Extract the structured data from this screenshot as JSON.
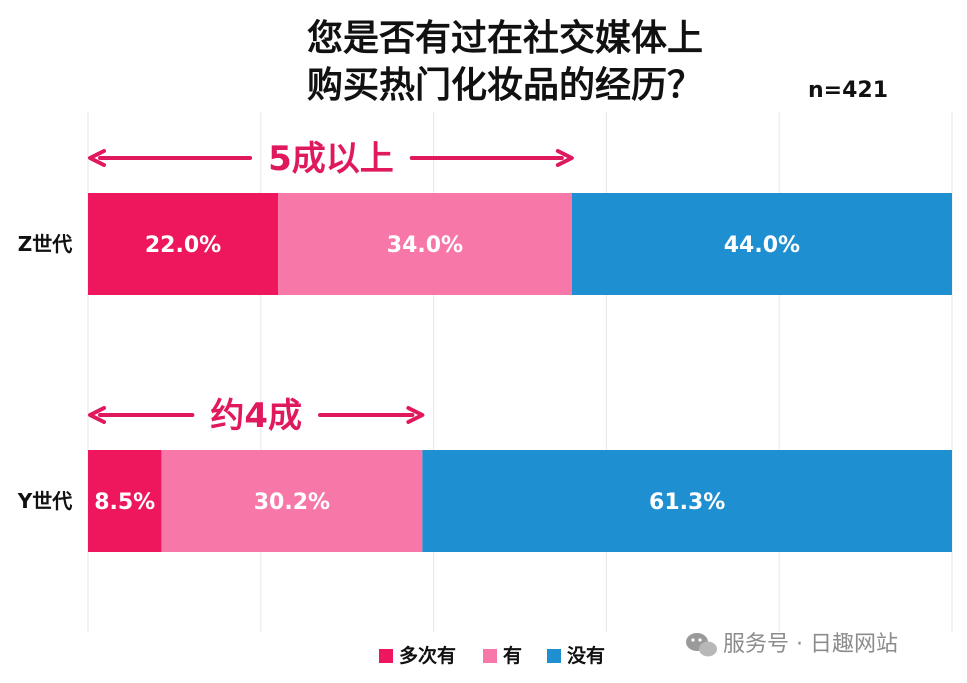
{
  "chart_data": {
    "type": "bar",
    "orientation": "horizontal",
    "stacked": true,
    "title_lines": [
      "您是否有过在社交媒体上",
      "购买热门化妆品的经历？"
    ],
    "sample_size": "n=421",
    "categories": [
      "Z世代",
      "Y世代"
    ],
    "series": [
      {
        "name": "多次有",
        "color": "#EE175E",
        "values": [
          22.0,
          8.5
        ]
      },
      {
        "name": "有",
        "color": "#F778A8",
        "values": [
          34.0,
          30.2
        ]
      },
      {
        "name": "没有",
        "color": "#1E8FD0",
        "values": [
          44.0,
          61.3
        ]
      }
    ],
    "data_labels": [
      [
        "22.0%",
        "8.5%"
      ],
      [
        "34.0%",
        "30.2%"
      ],
      [
        "44.0%",
        "61.3%"
      ]
    ],
    "annotations": [
      {
        "category": "Z世代",
        "text": "5成以上",
        "spans_to": 56.0,
        "color": "#E0185E"
      },
      {
        "category": "Y世代",
        "text": "约4成",
        "spans_to": 38.7,
        "color": "#E0185E"
      }
    ],
    "xlim": [
      0,
      100
    ],
    "gridlines": [
      20,
      40,
      60,
      80,
      100
    ],
    "legend_position": "bottom"
  },
  "watermark": {
    "icon": "wechat-icon",
    "text": "服务号 · 日趣网站"
  }
}
